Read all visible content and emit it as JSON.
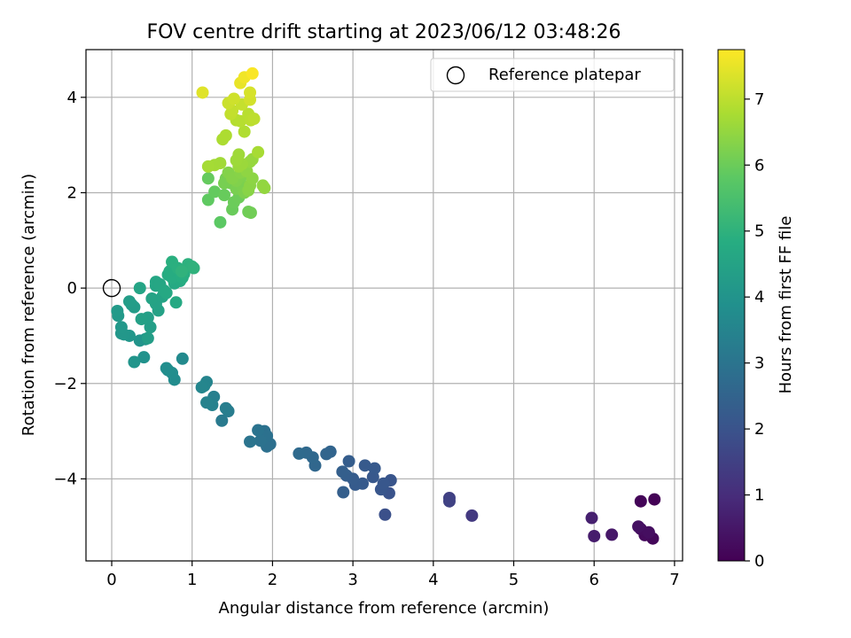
{
  "chart_data": {
    "type": "scatter",
    "title": "FOV centre drift starting at 2023/06/12 03:48:26",
    "xlabel": "Angular distance from reference (arcmin)",
    "ylabel": "Rotation from reference (arcmin)",
    "xlim": [
      -0.32,
      7.1
    ],
    "ylim": [
      -5.72,
      5.0
    ],
    "xticks": [
      0,
      1,
      2,
      3,
      4,
      5,
      6,
      7
    ],
    "yticks": [
      -4,
      -2,
      0,
      2,
      4
    ],
    "grid": true,
    "legend": {
      "placement": "top-right",
      "entries": [
        "Reference platepar"
      ]
    },
    "colorbar": {
      "label": "Hours from first FF file",
      "colormap": "viridis",
      "range": [
        0,
        7.75
      ],
      "ticks": [
        0,
        1,
        2,
        3,
        4,
        5,
        6,
        7
      ]
    },
    "reference_point": {
      "x": 0,
      "y": 0
    },
    "points": [
      {
        "x": 6.75,
        "y": -4.43,
        "c": 0.05
      },
      {
        "x": 6.58,
        "y": -4.47,
        "c": 0.1
      },
      {
        "x": 6.73,
        "y": -5.25,
        "c": 0.15
      },
      {
        "x": 6.63,
        "y": -5.18,
        "c": 0.2
      },
      {
        "x": 6.58,
        "y": -5.05,
        "c": 0.25
      },
      {
        "x": 6.68,
        "y": -5.12,
        "c": 0.3
      },
      {
        "x": 6.55,
        "y": -5.0,
        "c": 0.35
      },
      {
        "x": 6.22,
        "y": -5.17,
        "c": 0.5
      },
      {
        "x": 6.0,
        "y": -5.2,
        "c": 0.6
      },
      {
        "x": 5.97,
        "y": -4.82,
        "c": 0.7
      },
      {
        "x": 4.48,
        "y": -4.77,
        "c": 1.3
      },
      {
        "x": 4.2,
        "y": -4.4,
        "c": 1.5
      },
      {
        "x": 4.2,
        "y": -4.47,
        "c": 1.55
      },
      {
        "x": 3.4,
        "y": -4.75,
        "c": 1.9
      },
      {
        "x": 3.45,
        "y": -4.3,
        "c": 2.0
      },
      {
        "x": 3.47,
        "y": -4.03,
        "c": 2.05
      },
      {
        "x": 3.35,
        "y": -4.22,
        "c": 2.1
      },
      {
        "x": 3.38,
        "y": -4.1,
        "c": 2.12
      },
      {
        "x": 3.25,
        "y": -3.96,
        "c": 2.15
      },
      {
        "x": 3.27,
        "y": -3.78,
        "c": 2.18
      },
      {
        "x": 3.15,
        "y": -3.72,
        "c": 2.2
      },
      {
        "x": 3.12,
        "y": -4.1,
        "c": 2.22
      },
      {
        "x": 3.03,
        "y": -4.12,
        "c": 2.25
      },
      {
        "x": 3.0,
        "y": -4.0,
        "c": 2.27
      },
      {
        "x": 2.95,
        "y": -3.63,
        "c": 2.3
      },
      {
        "x": 2.92,
        "y": -3.93,
        "c": 2.32
      },
      {
        "x": 2.88,
        "y": -4.28,
        "c": 2.35
      },
      {
        "x": 2.87,
        "y": -3.85,
        "c": 2.37
      },
      {
        "x": 2.72,
        "y": -3.43,
        "c": 2.5
      },
      {
        "x": 2.67,
        "y": -3.48,
        "c": 2.55
      },
      {
        "x": 2.53,
        "y": -3.72,
        "c": 2.6
      },
      {
        "x": 2.5,
        "y": -3.55,
        "c": 2.63
      },
      {
        "x": 2.42,
        "y": -3.45,
        "c": 2.66
      },
      {
        "x": 2.33,
        "y": -3.47,
        "c": 2.7
      },
      {
        "x": 1.97,
        "y": -3.27,
        "c": 2.85
      },
      {
        "x": 1.93,
        "y": -3.32,
        "c": 2.87
      },
      {
        "x": 1.9,
        "y": -3.0,
        "c": 2.9
      },
      {
        "x": 1.93,
        "y": -3.1,
        "c": 2.92
      },
      {
        "x": 1.85,
        "y": -3.2,
        "c": 2.95
      },
      {
        "x": 1.82,
        "y": -2.98,
        "c": 2.97
      },
      {
        "x": 1.72,
        "y": -3.22,
        "c": 3.0
      },
      {
        "x": 1.37,
        "y": -2.78,
        "c": 3.2
      },
      {
        "x": 1.45,
        "y": -2.58,
        "c": 3.25
      },
      {
        "x": 1.42,
        "y": -2.52,
        "c": 3.3
      },
      {
        "x": 1.27,
        "y": -2.28,
        "c": 3.35
      },
      {
        "x": 1.25,
        "y": -2.45,
        "c": 3.4
      },
      {
        "x": 1.18,
        "y": -2.4,
        "c": 3.45
      },
      {
        "x": 1.18,
        "y": -1.97,
        "c": 3.5
      },
      {
        "x": 1.15,
        "y": -2.05,
        "c": 3.52
      },
      {
        "x": 1.12,
        "y": -2.08,
        "c": 3.55
      },
      {
        "x": 0.88,
        "y": -1.48,
        "c": 3.7
      },
      {
        "x": 0.78,
        "y": -1.92,
        "c": 3.75
      },
      {
        "x": 0.75,
        "y": -1.78,
        "c": 3.78
      },
      {
        "x": 0.7,
        "y": -1.72,
        "c": 3.8
      },
      {
        "x": 0.68,
        "y": -1.68,
        "c": 3.82
      },
      {
        "x": 0.4,
        "y": -1.45,
        "c": 3.95
      },
      {
        "x": 0.42,
        "y": -1.07,
        "c": 4.0
      },
      {
        "x": 0.35,
        "y": -1.1,
        "c": 4.02
      },
      {
        "x": 0.28,
        "y": -1.55,
        "c": 4.05
      },
      {
        "x": 0.22,
        "y": -1.0,
        "c": 4.08
      },
      {
        "x": 0.15,
        "y": -0.97,
        "c": 4.1
      },
      {
        "x": 0.12,
        "y": -0.95,
        "c": 4.12
      },
      {
        "x": 0.12,
        "y": -0.82,
        "c": 4.15
      },
      {
        "x": 0.08,
        "y": -0.58,
        "c": 4.18
      },
      {
        "x": 0.07,
        "y": -0.48,
        "c": 4.2
      },
      {
        "x": 0.25,
        "y": -0.35,
        "c": 4.25
      },
      {
        "x": 0.28,
        "y": -0.4,
        "c": 4.28
      },
      {
        "x": 0.22,
        "y": -0.28,
        "c": 4.3
      },
      {
        "x": 0.45,
        "y": -1.05,
        "c": 4.32
      },
      {
        "x": 0.48,
        "y": -0.82,
        "c": 4.35
      },
      {
        "x": 0.45,
        "y": -0.62,
        "c": 4.38
      },
      {
        "x": 0.37,
        "y": -0.65,
        "c": 4.4
      },
      {
        "x": 0.58,
        "y": -0.47,
        "c": 4.45
      },
      {
        "x": 0.55,
        "y": -0.33,
        "c": 4.48
      },
      {
        "x": 0.5,
        "y": -0.22,
        "c": 4.5
      },
      {
        "x": 0.63,
        "y": -0.18,
        "c": 4.52
      },
      {
        "x": 0.35,
        "y": 0.0,
        "c": 4.55
      },
      {
        "x": 0.55,
        "y": 0.05,
        "c": 4.58
      },
      {
        "x": 0.55,
        "y": 0.13,
        "c": 4.6
      },
      {
        "x": 0.6,
        "y": 0.08,
        "c": 4.62
      },
      {
        "x": 0.65,
        "y": -0.05,
        "c": 4.65
      },
      {
        "x": 0.68,
        "y": -0.1,
        "c": 4.68
      },
      {
        "x": 0.8,
        "y": -0.3,
        "c": 4.7
      },
      {
        "x": 0.78,
        "y": 0.1,
        "c": 4.72
      },
      {
        "x": 0.85,
        "y": 0.15,
        "c": 4.75
      },
      {
        "x": 0.7,
        "y": 0.28,
        "c": 4.78
      },
      {
        "x": 0.75,
        "y": 0.22,
        "c": 4.8
      },
      {
        "x": 0.72,
        "y": 0.35,
        "c": 4.82
      },
      {
        "x": 0.88,
        "y": 0.22,
        "c": 4.85
      },
      {
        "x": 0.9,
        "y": 0.3,
        "c": 4.88
      },
      {
        "x": 0.75,
        "y": 0.55,
        "c": 4.9
      },
      {
        "x": 0.82,
        "y": 0.42,
        "c": 4.92
      },
      {
        "x": 0.95,
        "y": 0.5,
        "c": 4.95
      },
      {
        "x": 1.0,
        "y": 0.45,
        "c": 4.97
      },
      {
        "x": 1.02,
        "y": 0.42,
        "c": 5.0
      },
      {
        "x": 0.87,
        "y": 0.35,
        "c": 5.02
      },
      {
        "x": 1.35,
        "y": 1.38,
        "c": 5.8
      },
      {
        "x": 1.2,
        "y": 1.85,
        "c": 5.85
      },
      {
        "x": 1.28,
        "y": 2.02,
        "c": 5.9
      },
      {
        "x": 1.2,
        "y": 2.3,
        "c": 5.92
      },
      {
        "x": 1.4,
        "y": 1.95,
        "c": 5.95
      },
      {
        "x": 1.5,
        "y": 1.65,
        "c": 5.97
      },
      {
        "x": 1.52,
        "y": 1.8,
        "c": 6.0
      },
      {
        "x": 1.58,
        "y": 1.9,
        "c": 6.02
      },
      {
        "x": 1.7,
        "y": 1.6,
        "c": 6.05
      },
      {
        "x": 1.73,
        "y": 1.58,
        "c": 6.07
      },
      {
        "x": 1.48,
        "y": 2.2,
        "c": 6.1
      },
      {
        "x": 1.42,
        "y": 2.3,
        "c": 6.12
      },
      {
        "x": 1.4,
        "y": 2.2,
        "c": 6.15
      },
      {
        "x": 1.55,
        "y": 2.08,
        "c": 6.17
      },
      {
        "x": 1.62,
        "y": 2.15,
        "c": 6.2
      },
      {
        "x": 1.65,
        "y": 2.0,
        "c": 6.22
      },
      {
        "x": 1.62,
        "y": 2.35,
        "c": 6.25
      },
      {
        "x": 1.55,
        "y": 2.25,
        "c": 6.27
      },
      {
        "x": 1.45,
        "y": 2.42,
        "c": 6.3
      },
      {
        "x": 1.5,
        "y": 2.3,
        "c": 6.32
      },
      {
        "x": 1.6,
        "y": 2.42,
        "c": 6.35
      },
      {
        "x": 1.7,
        "y": 2.05,
        "c": 6.37
      },
      {
        "x": 1.72,
        "y": 2.15,
        "c": 6.4
      },
      {
        "x": 1.75,
        "y": 2.3,
        "c": 6.42
      },
      {
        "x": 1.68,
        "y": 2.45,
        "c": 6.45
      },
      {
        "x": 1.88,
        "y": 2.15,
        "c": 6.47
      },
      {
        "x": 1.9,
        "y": 2.1,
        "c": 6.5
      },
      {
        "x": 1.72,
        "y": 2.65,
        "c": 6.52
      },
      {
        "x": 1.75,
        "y": 2.7,
        "c": 6.55
      },
      {
        "x": 1.58,
        "y": 2.55,
        "c": 6.57
      },
      {
        "x": 1.62,
        "y": 2.6,
        "c": 6.6
      },
      {
        "x": 1.55,
        "y": 2.68,
        "c": 6.62
      },
      {
        "x": 1.58,
        "y": 2.8,
        "c": 6.65
      },
      {
        "x": 1.35,
        "y": 2.62,
        "c": 6.67
      },
      {
        "x": 1.28,
        "y": 2.58,
        "c": 6.7
      },
      {
        "x": 1.2,
        "y": 2.55,
        "c": 6.72
      },
      {
        "x": 1.82,
        "y": 2.85,
        "c": 6.75
      },
      {
        "x": 1.38,
        "y": 3.12,
        "c": 6.8
      },
      {
        "x": 1.42,
        "y": 3.2,
        "c": 6.82
      },
      {
        "x": 1.65,
        "y": 3.28,
        "c": 6.85
      },
      {
        "x": 1.55,
        "y": 3.52,
        "c": 6.9
      },
      {
        "x": 1.6,
        "y": 3.5,
        "c": 6.92
      },
      {
        "x": 1.7,
        "y": 3.65,
        "c": 6.95
      },
      {
        "x": 1.73,
        "y": 3.52,
        "c": 6.97
      },
      {
        "x": 1.77,
        "y": 3.55,
        "c": 7.0
      },
      {
        "x": 1.48,
        "y": 3.65,
        "c": 7.05
      },
      {
        "x": 1.5,
        "y": 3.72,
        "c": 7.07
      },
      {
        "x": 1.62,
        "y": 3.85,
        "c": 7.1
      },
      {
        "x": 1.45,
        "y": 3.88,
        "c": 7.15
      },
      {
        "x": 1.52,
        "y": 3.97,
        "c": 7.2
      },
      {
        "x": 1.72,
        "y": 3.95,
        "c": 7.25
      },
      {
        "x": 1.72,
        "y": 4.1,
        "c": 7.3
      },
      {
        "x": 1.13,
        "y": 4.1,
        "c": 7.4
      },
      {
        "x": 1.6,
        "y": 4.3,
        "c": 7.5
      },
      {
        "x": 1.65,
        "y": 4.42,
        "c": 7.6
      },
      {
        "x": 1.75,
        "y": 4.5,
        "c": 7.7
      }
    ]
  }
}
